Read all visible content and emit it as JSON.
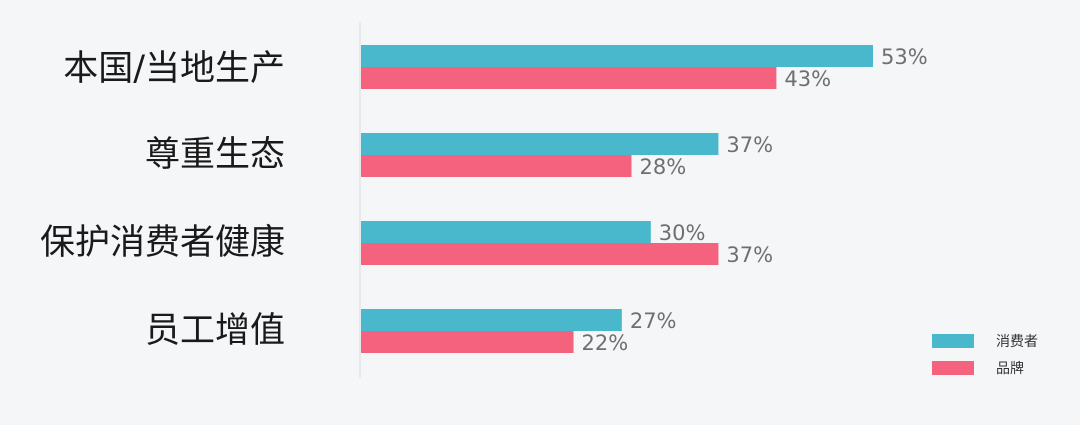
{
  "chart_data": {
    "type": "bar",
    "orientation": "horizontal",
    "categories": [
      "本国/当地生产",
      "尊重生态",
      "保护消费者健康",
      "员工增值"
    ],
    "series": [
      {
        "name": "消费者",
        "values": [
          53,
          37,
          30,
          27
        ],
        "labels": [
          "53%",
          "37%",
          "30%",
          "27%"
        ],
        "color": "#4ab8cc"
      },
      {
        "name": "品牌",
        "values": [
          43,
          28,
          37,
          22
        ],
        "labels": [
          "43%",
          "28%",
          "37%",
          "22%"
        ],
        "color": "#f4627e"
      }
    ],
    "unit": "%",
    "xlim": [
      0,
      100
    ],
    "grid": false,
    "legend_position": "bottom-right"
  },
  "colors": {
    "background": "#f4f6f8",
    "axis": "#e2e5e8",
    "label": "#1a1a1a",
    "value_label": "#6f6f6f"
  }
}
